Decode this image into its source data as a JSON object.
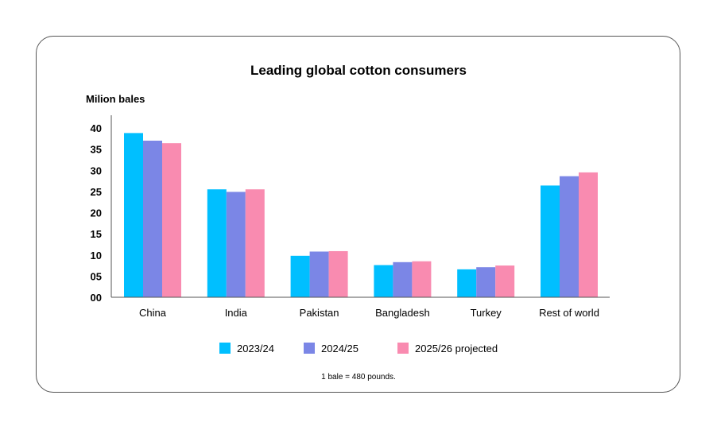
{
  "chart_data": {
    "type": "bar",
    "title": "Leading global cotton consumers",
    "ylabel": "Milion bales",
    "xlabel": "",
    "ylim": [
      0,
      40
    ],
    "yticks": [
      "00",
      "05",
      "10",
      "15",
      "20",
      "25",
      "30",
      "35",
      "40"
    ],
    "grid": false,
    "legend_position": "bottom",
    "categories": [
      "China",
      "India",
      "Pakistan",
      "Bangladesh",
      "Turkey",
      "Rest of world"
    ],
    "series": [
      {
        "name": "2023/24",
        "color": "#00bfff",
        "values": [
          38.8,
          25.5,
          9.8,
          7.6,
          6.6,
          26.4
        ]
      },
      {
        "name": "2024/25",
        "color": "#7b86e6",
        "values": [
          37.0,
          24.9,
          10.8,
          8.3,
          7.1,
          28.6
        ]
      },
      {
        "name": "2025/26 projected",
        "color": "#f98bb0",
        "values": [
          36.4,
          25.5,
          10.9,
          8.5,
          7.5,
          29.5
        ]
      }
    ],
    "footnote": "1 bale = 480 pounds."
  }
}
